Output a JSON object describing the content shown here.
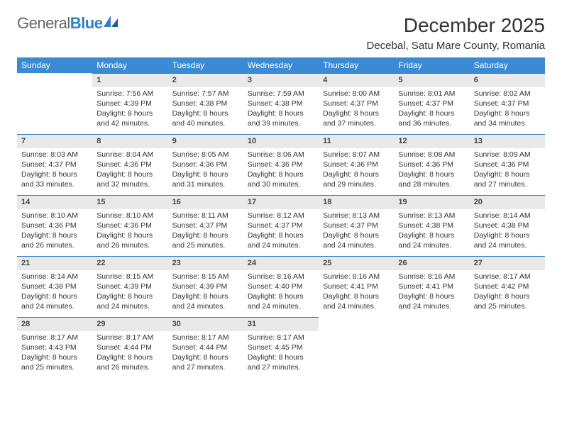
{
  "brand": {
    "part1": "General",
    "part2": "Blue"
  },
  "title": "December 2025",
  "subtitle": "Decebal, Satu Mare County, Romania",
  "colors": {
    "header_bg": "#3b8bd4",
    "header_text": "#ffffff",
    "daybar_bg": "#e9e9e9",
    "daybar_border": "#2f7fc4",
    "page_bg": "#ffffff",
    "text": "#333333",
    "brand_blue": "#2f7fc4",
    "brand_gray": "#666666"
  },
  "day_headers": [
    "Sunday",
    "Monday",
    "Tuesday",
    "Wednesday",
    "Thursday",
    "Friday",
    "Saturday"
  ],
  "weeks": [
    [
      {
        "day": "",
        "empty": true
      },
      {
        "day": "1",
        "sunrise": "Sunrise: 7:56 AM",
        "sunset": "Sunset: 4:39 PM",
        "daylight": "Daylight: 8 hours and 42 minutes."
      },
      {
        "day": "2",
        "sunrise": "Sunrise: 7:57 AM",
        "sunset": "Sunset: 4:38 PM",
        "daylight": "Daylight: 8 hours and 40 minutes."
      },
      {
        "day": "3",
        "sunrise": "Sunrise: 7:59 AM",
        "sunset": "Sunset: 4:38 PM",
        "daylight": "Daylight: 8 hours and 39 minutes."
      },
      {
        "day": "4",
        "sunrise": "Sunrise: 8:00 AM",
        "sunset": "Sunset: 4:37 PM",
        "daylight": "Daylight: 8 hours and 37 minutes."
      },
      {
        "day": "5",
        "sunrise": "Sunrise: 8:01 AM",
        "sunset": "Sunset: 4:37 PM",
        "daylight": "Daylight: 8 hours and 36 minutes."
      },
      {
        "day": "6",
        "sunrise": "Sunrise: 8:02 AM",
        "sunset": "Sunset: 4:37 PM",
        "daylight": "Daylight: 8 hours and 34 minutes."
      }
    ],
    [
      {
        "day": "7",
        "sunrise": "Sunrise: 8:03 AM",
        "sunset": "Sunset: 4:37 PM",
        "daylight": "Daylight: 8 hours and 33 minutes."
      },
      {
        "day": "8",
        "sunrise": "Sunrise: 8:04 AM",
        "sunset": "Sunset: 4:36 PM",
        "daylight": "Daylight: 8 hours and 32 minutes."
      },
      {
        "day": "9",
        "sunrise": "Sunrise: 8:05 AM",
        "sunset": "Sunset: 4:36 PM",
        "daylight": "Daylight: 8 hours and 31 minutes."
      },
      {
        "day": "10",
        "sunrise": "Sunrise: 8:06 AM",
        "sunset": "Sunset: 4:36 PM",
        "daylight": "Daylight: 8 hours and 30 minutes."
      },
      {
        "day": "11",
        "sunrise": "Sunrise: 8:07 AM",
        "sunset": "Sunset: 4:36 PM",
        "daylight": "Daylight: 8 hours and 29 minutes."
      },
      {
        "day": "12",
        "sunrise": "Sunrise: 8:08 AM",
        "sunset": "Sunset: 4:36 PM",
        "daylight": "Daylight: 8 hours and 28 minutes."
      },
      {
        "day": "13",
        "sunrise": "Sunrise: 8:09 AM",
        "sunset": "Sunset: 4:36 PM",
        "daylight": "Daylight: 8 hours and 27 minutes."
      }
    ],
    [
      {
        "day": "14",
        "sunrise": "Sunrise: 8:10 AM",
        "sunset": "Sunset: 4:36 PM",
        "daylight": "Daylight: 8 hours and 26 minutes."
      },
      {
        "day": "15",
        "sunrise": "Sunrise: 8:10 AM",
        "sunset": "Sunset: 4:36 PM",
        "daylight": "Daylight: 8 hours and 26 minutes."
      },
      {
        "day": "16",
        "sunrise": "Sunrise: 8:11 AM",
        "sunset": "Sunset: 4:37 PM",
        "daylight": "Daylight: 8 hours and 25 minutes."
      },
      {
        "day": "17",
        "sunrise": "Sunrise: 8:12 AM",
        "sunset": "Sunset: 4:37 PM",
        "daylight": "Daylight: 8 hours and 24 minutes."
      },
      {
        "day": "18",
        "sunrise": "Sunrise: 8:13 AM",
        "sunset": "Sunset: 4:37 PM",
        "daylight": "Daylight: 8 hours and 24 minutes."
      },
      {
        "day": "19",
        "sunrise": "Sunrise: 8:13 AM",
        "sunset": "Sunset: 4:38 PM",
        "daylight": "Daylight: 8 hours and 24 minutes."
      },
      {
        "day": "20",
        "sunrise": "Sunrise: 8:14 AM",
        "sunset": "Sunset: 4:38 PM",
        "daylight": "Daylight: 8 hours and 24 minutes."
      }
    ],
    [
      {
        "day": "21",
        "sunrise": "Sunrise: 8:14 AM",
        "sunset": "Sunset: 4:38 PM",
        "daylight": "Daylight: 8 hours and 24 minutes."
      },
      {
        "day": "22",
        "sunrise": "Sunrise: 8:15 AM",
        "sunset": "Sunset: 4:39 PM",
        "daylight": "Daylight: 8 hours and 24 minutes."
      },
      {
        "day": "23",
        "sunrise": "Sunrise: 8:15 AM",
        "sunset": "Sunset: 4:39 PM",
        "daylight": "Daylight: 8 hours and 24 minutes."
      },
      {
        "day": "24",
        "sunrise": "Sunrise: 8:16 AM",
        "sunset": "Sunset: 4:40 PM",
        "daylight": "Daylight: 8 hours and 24 minutes."
      },
      {
        "day": "25",
        "sunrise": "Sunrise: 8:16 AM",
        "sunset": "Sunset: 4:41 PM",
        "daylight": "Daylight: 8 hours and 24 minutes."
      },
      {
        "day": "26",
        "sunrise": "Sunrise: 8:16 AM",
        "sunset": "Sunset: 4:41 PM",
        "daylight": "Daylight: 8 hours and 24 minutes."
      },
      {
        "day": "27",
        "sunrise": "Sunrise: 8:17 AM",
        "sunset": "Sunset: 4:42 PM",
        "daylight": "Daylight: 8 hours and 25 minutes."
      }
    ],
    [
      {
        "day": "28",
        "sunrise": "Sunrise: 8:17 AM",
        "sunset": "Sunset: 4:43 PM",
        "daylight": "Daylight: 8 hours and 25 minutes."
      },
      {
        "day": "29",
        "sunrise": "Sunrise: 8:17 AM",
        "sunset": "Sunset: 4:44 PM",
        "daylight": "Daylight: 8 hours and 26 minutes."
      },
      {
        "day": "30",
        "sunrise": "Sunrise: 8:17 AM",
        "sunset": "Sunset: 4:44 PM",
        "daylight": "Daylight: 8 hours and 27 minutes."
      },
      {
        "day": "31",
        "sunrise": "Sunrise: 8:17 AM",
        "sunset": "Sunset: 4:45 PM",
        "daylight": "Daylight: 8 hours and 27 minutes."
      },
      {
        "day": "",
        "empty": true
      },
      {
        "day": "",
        "empty": true
      },
      {
        "day": "",
        "empty": true
      }
    ]
  ]
}
